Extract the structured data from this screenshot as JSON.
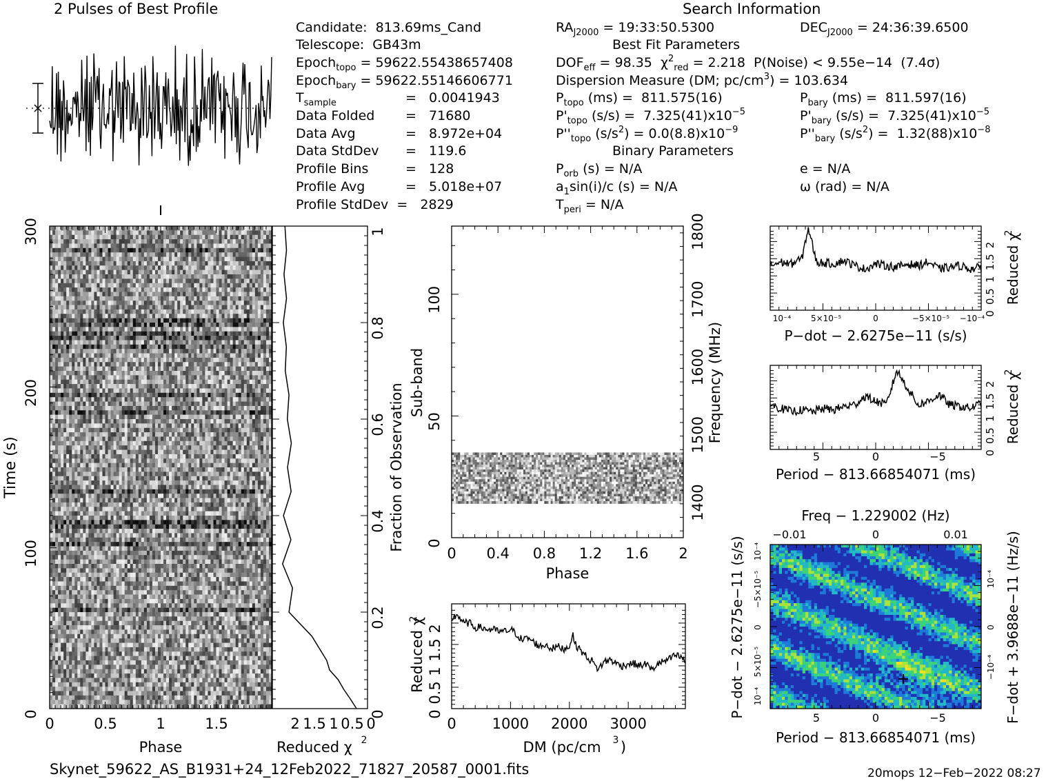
{
  "profile": {
    "title": "2 Pulses of Best Profile"
  },
  "search_info": {
    "title": "Search Information",
    "ra": "19:33:50.5300",
    "dec": "24:36:39.6500"
  },
  "candidate": {
    "candidate": "813.69ms_Cand",
    "telescope": "GB43m",
    "epoch_topo": "59622.55438657408",
    "epoch_bary": "59622.55146606771",
    "t_sample": "0.0041943",
    "data_folded": "71680",
    "data_avg": "8.972e+04",
    "data_stddev": "119.6",
    "profile_bins": "128",
    "profile_avg": "5.018e+07",
    "profile_stddev": "2829"
  },
  "best_fit": {
    "title": "Best Fit Parameters",
    "dof_eff": "98.35",
    "chi2_red": "2.218",
    "p_noise": "9.55e−14",
    "sigma": "(7.4σ)",
    "dm": "103.634",
    "p_topo": "811.575(16)",
    "p_bary": "811.597(16)",
    "pd_topo": "7.325(41)x10",
    "pd_topo_exp": "−5",
    "pd_bary": "7.325(41)x10",
    "pd_bary_exp": "−5",
    "pdd_topo": "0.0(8.8)x10",
    "pdd_topo_exp": "−9",
    "pdd_bary": "1.32(88)x10",
    "pdd_bary_exp": "−8"
  },
  "binary": {
    "title": "Binary Parameters",
    "p_orb": "N/A",
    "a1": "N/A",
    "t_peri": "N/A",
    "e": "N/A",
    "omega": "N/A"
  },
  "footer": {
    "filename": "Skynet_59622_AS_B1931+24_12Feb2022_71827_20587_0001.fits",
    "stamp": "20mops 12−Feb−2022 08:27"
  },
  "chart_data": [
    {
      "type": "line",
      "name": "profile",
      "title": "2 Pulses of Best Profile",
      "x_range": [
        0,
        2
      ],
      "note": "noisy folded profile, no axes"
    },
    {
      "type": "heatmap",
      "name": "time-phase",
      "xlabel": "Phase",
      "ylabel": "Time (s)",
      "xlim": [
        0,
        2
      ],
      "ylim": [
        0,
        300
      ],
      "xticks": [
        "0",
        "0.5",
        "1",
        "1.5"
      ],
      "yticks": [
        "0",
        "100",
        "200",
        "300"
      ],
      "colormap": "grayscale"
    },
    {
      "type": "line",
      "name": "reduced-chi2-vs-fraction",
      "xlabel": "Reduced χ²",
      "ylabel": "Fraction of Observation",
      "xticks": [
        "2",
        "1.5",
        "1",
        "0.5",
        "0"
      ],
      "yticks": [
        "0",
        "0.2",
        "0.4",
        "0.6",
        "0.8",
        "1"
      ],
      "x_reversed": true,
      "points": [
        [
          0.0,
          0.3
        ],
        [
          0.02,
          0.45
        ],
        [
          0.04,
          0.6
        ],
        [
          0.06,
          0.8
        ],
        [
          0.08,
          1.0
        ],
        [
          0.1,
          1.1
        ],
        [
          0.15,
          1.5
        ],
        [
          0.2,
          2.05
        ],
        [
          0.25,
          2.0
        ],
        [
          0.3,
          2.2
        ],
        [
          0.35,
          2.0
        ],
        [
          0.4,
          2.2
        ],
        [
          0.45,
          2.0
        ],
        [
          0.5,
          2.1
        ],
        [
          0.55,
          2.0
        ],
        [
          0.6,
          2.1
        ],
        [
          0.65,
          2.05
        ],
        [
          0.7,
          2.2
        ],
        [
          0.75,
          2.1
        ],
        [
          0.8,
          2.2
        ],
        [
          0.85,
          2.15
        ],
        [
          0.9,
          2.2
        ],
        [
          0.95,
          2.15
        ],
        [
          1.0,
          2.2
        ]
      ]
    },
    {
      "type": "heatmap",
      "name": "subband-phase",
      "xlabel": "Phase",
      "ylabel": "Sub-band",
      "y2label": "Frequency (MHz)",
      "xticks": [
        "0",
        "0.4",
        "0.8",
        "1.2",
        "1.6",
        "2"
      ],
      "yticks": [
        "0",
        "50",
        "100"
      ],
      "y2ticks": [
        "1400",
        "1500",
        "1600",
        "1700",
        "1800"
      ],
      "xlim": [
        0,
        2
      ],
      "ylim": [
        0,
        128
      ],
      "y2lim": [
        1340,
        1800
      ],
      "filled_subbands": [
        14,
        35
      ],
      "colormap": "grayscale"
    },
    {
      "type": "line",
      "name": "chi2-vs-dm",
      "xlabel": "DM (pc/cm³)",
      "ylabel": "Reduced χ²",
      "xlim": [
        0,
        3970
      ],
      "ylim": [
        0,
        2.45
      ],
      "xticks": [
        "0",
        "1000",
        "2000",
        "3000"
      ],
      "yticks": [
        "0",
        "0.5",
        "1",
        "1.5",
        "2"
      ],
      "points": [
        [
          0,
          2.1
        ],
        [
          100,
          2.2
        ],
        [
          200,
          2.0
        ],
        [
          300,
          2.0
        ],
        [
          400,
          1.9
        ],
        [
          500,
          1.9
        ],
        [
          600,
          1.85
        ],
        [
          700,
          1.85
        ],
        [
          800,
          1.8
        ],
        [
          900,
          1.8
        ],
        [
          1000,
          1.85
        ],
        [
          1100,
          1.75
        ],
        [
          1200,
          1.6
        ],
        [
          1300,
          1.65
        ],
        [
          1400,
          1.55
        ],
        [
          1500,
          1.45
        ],
        [
          1600,
          1.5
        ],
        [
          1700,
          1.4
        ],
        [
          1800,
          1.45
        ],
        [
          1900,
          1.4
        ],
        [
          2000,
          1.45
        ],
        [
          2050,
          1.75
        ],
        [
          2100,
          1.5
        ],
        [
          2200,
          1.35
        ],
        [
          2300,
          1.2
        ],
        [
          2400,
          1.1
        ],
        [
          2450,
          0.95
        ],
        [
          2500,
          0.95
        ],
        [
          2600,
          1.1
        ],
        [
          2700,
          1.15
        ],
        [
          2800,
          1.05
        ],
        [
          2900,
          1.0
        ],
        [
          3000,
          1.05
        ],
        [
          3100,
          1.05
        ],
        [
          3200,
          1.0
        ],
        [
          3300,
          1.05
        ],
        [
          3400,
          0.9
        ],
        [
          3500,
          1.05
        ],
        [
          3600,
          1.1
        ],
        [
          3700,
          1.15
        ],
        [
          3800,
          1.25
        ],
        [
          3900,
          1.2
        ],
        [
          3970,
          1.1
        ]
      ]
    },
    {
      "type": "line",
      "name": "chi2-vs-pdot",
      "xlabel": "P−dot − 2.6275e−11 (s/s)",
      "ylabel": "Reduced χ²",
      "xticks": [
        "10⁻⁴",
        "5×10⁻⁵",
        "0",
        "−5×10⁻⁵",
        "−10⁻⁴"
      ],
      "yticks": [
        "0",
        "0.5",
        "1",
        "1.5",
        "2"
      ],
      "ylim": [
        0,
        2.45
      ],
      "x_reversed": true,
      "points": [
        [
          0,
          1.3
        ],
        [
          0.05,
          1.4
        ],
        [
          0.1,
          1.35
        ],
        [
          0.15,
          1.5
        ],
        [
          0.18,
          2.4
        ],
        [
          0.22,
          1.4
        ],
        [
          0.3,
          1.35
        ],
        [
          0.35,
          1.45
        ],
        [
          0.4,
          1.3
        ],
        [
          0.45,
          1.2
        ],
        [
          0.5,
          1.35
        ],
        [
          0.55,
          1.3
        ],
        [
          0.6,
          1.25
        ],
        [
          0.65,
          1.35
        ],
        [
          0.7,
          1.3
        ],
        [
          0.75,
          1.4
        ],
        [
          0.8,
          1.2
        ],
        [
          0.85,
          1.25
        ],
        [
          0.9,
          1.3
        ],
        [
          0.95,
          1.2
        ],
        [
          1.0,
          1.25
        ]
      ]
    },
    {
      "type": "line",
      "name": "chi2-vs-period",
      "xlabel": "Period − 813.66854071 (ms)",
      "ylabel": "Reduced χ²",
      "xticks": [
        "5",
        "0",
        "−5"
      ],
      "yticks": [
        "0",
        "0.5",
        "1",
        "1.5",
        "2"
      ],
      "ylim": [
        0,
        2.45
      ],
      "x_reversed": true,
      "points": [
        [
          0,
          1.3
        ],
        [
          0.05,
          1.2
        ],
        [
          0.1,
          1.1
        ],
        [
          0.15,
          1.15
        ],
        [
          0.2,
          1.1
        ],
        [
          0.25,
          1.2
        ],
        [
          0.3,
          1.15
        ],
        [
          0.35,
          1.25
        ],
        [
          0.4,
          1.3
        ],
        [
          0.45,
          1.55
        ],
        [
          0.5,
          1.4
        ],
        [
          0.55,
          1.3
        ],
        [
          0.6,
          2.3
        ],
        [
          0.65,
          1.8
        ],
        [
          0.7,
          1.3
        ],
        [
          0.75,
          1.4
        ],
        [
          0.8,
          1.6
        ],
        [
          0.85,
          1.3
        ],
        [
          0.9,
          1.25
        ],
        [
          0.95,
          1.2
        ],
        [
          1.0,
          1.35
        ]
      ]
    },
    {
      "type": "heatmap",
      "name": "pdot-vs-period",
      "title": "Freq − 1.229002 (Hz)",
      "xlabel": "Period − 813.66854071 (ms)",
      "ylabel": "P−dot − 2.6275e−11 (s/s)",
      "y2label": "F−dot + 3.9688e−11 (Hz/s)",
      "xticks": [
        "5",
        "0",
        "−5"
      ],
      "x2ticks": [
        "−0.01",
        "0",
        "0.01"
      ],
      "yticks": [
        "10⁻⁴",
        "5×10⁻⁵",
        "0",
        "−5×10⁻⁵",
        "10⁻⁴"
      ],
      "y2ticks": [
        "−10⁻⁴",
        "0",
        "10⁻⁴"
      ],
      "best_point": [
        -2.0,
        0.22
      ],
      "colormap": "blue-green-yellow"
    }
  ]
}
